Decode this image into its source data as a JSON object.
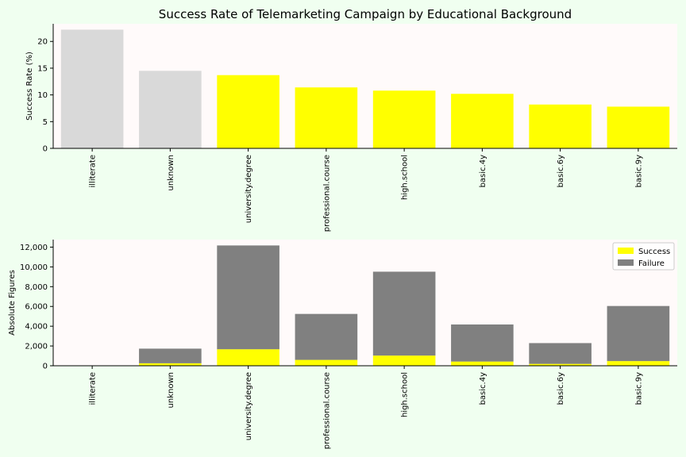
{
  "chart_data": [
    {
      "type": "bar",
      "title": "Success Rate of Telemarketing Campaign by Educational Background",
      "xlabel": "",
      "ylabel": "Success Rate (%)",
      "ylim": [
        0,
        23.3
      ],
      "yticks": [
        0,
        5,
        10,
        15,
        20
      ],
      "yticklabels": [
        "0",
        "5",
        "10",
        "15",
        "20"
      ],
      "categories": [
        "illiterate",
        "unknown",
        "university.degree",
        "professional.course",
        "high.school",
        "basic.4y",
        "basic.6y",
        "basic.9y"
      ],
      "values": [
        22.2,
        14.5,
        13.7,
        11.4,
        10.8,
        10.2,
        8.2,
        7.8
      ],
      "bar_colors": [
        "#d9d9d9",
        "#d9d9d9",
        "#ffff00",
        "#ffff00",
        "#ffff00",
        "#ffff00",
        "#ffff00",
        "#ffff00"
      ],
      "grid": false,
      "background": "#fffafa"
    },
    {
      "type": "bar",
      "stacked": true,
      "title": "",
      "xlabel": "",
      "ylabel": "Absolute Figures",
      "ylim": [
        0,
        12760
      ],
      "yticks": [
        0,
        2000,
        4000,
        6000,
        8000,
        10000,
        12000
      ],
      "yticklabels": [
        "0",
        "2,000",
        "4,000",
        "6,000",
        "8,000",
        "10,000",
        "12,000"
      ],
      "categories": [
        "illiterate",
        "unknown",
        "university.degree",
        "professional.course",
        "high.school",
        "basic.4y",
        "basic.6y",
        "basic.9y"
      ],
      "series": [
        {
          "name": "Success",
          "color": "#ffff00",
          "values": [
            4,
            251,
            1670,
            595,
            1031,
            428,
            188,
            473
          ]
        },
        {
          "name": "Failure",
          "color": "#808080",
          "values": [
            14,
            1480,
            10498,
            4648,
            8484,
            3748,
            2104,
            5572
          ]
        }
      ],
      "legend": "top-right",
      "grid": false,
      "background": "#fffafa"
    }
  ]
}
